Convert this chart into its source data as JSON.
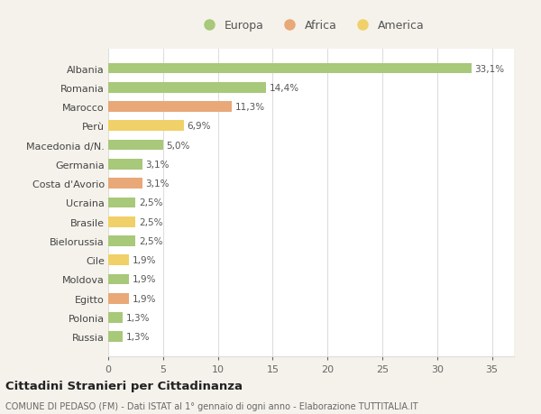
{
  "countries": [
    "Albania",
    "Romania",
    "Marocco",
    "Perù",
    "Macedonia d/N.",
    "Germania",
    "Costa d'Avorio",
    "Ucraina",
    "Brasile",
    "Bielorussia",
    "Cile",
    "Moldova",
    "Egitto",
    "Polonia",
    "Russia"
  ],
  "values": [
    33.1,
    14.4,
    11.3,
    6.9,
    5.0,
    3.1,
    3.1,
    2.5,
    2.5,
    2.5,
    1.9,
    1.9,
    1.9,
    1.3,
    1.3
  ],
  "labels": [
    "33,1%",
    "14,4%",
    "11,3%",
    "6,9%",
    "5,0%",
    "3,1%",
    "3,1%",
    "2,5%",
    "2,5%",
    "2,5%",
    "1,9%",
    "1,9%",
    "1,9%",
    "1,3%",
    "1,3%"
  ],
  "continents": [
    "Europa",
    "Europa",
    "Africa",
    "America",
    "Europa",
    "Europa",
    "Africa",
    "Europa",
    "America",
    "Europa",
    "America",
    "Europa",
    "Africa",
    "Europa",
    "Europa"
  ],
  "colors": {
    "Europa": "#a8c87a",
    "Africa": "#e8a878",
    "America": "#f0d068"
  },
  "title1": "Cittadini Stranieri per Cittadinanza",
  "title2": "COMUNE DI PEDASO (FM) - Dati ISTAT al 1° gennaio di ogni anno - Elaborazione TUTTITALIA.IT",
  "xlim": [
    0,
    37
  ],
  "xticks": [
    0,
    5,
    10,
    15,
    20,
    25,
    30,
    35
  ],
  "bg_color": "#f5f2eb",
  "plot_bg_color": "#ffffff",
  "grid_color": "#dddddd"
}
